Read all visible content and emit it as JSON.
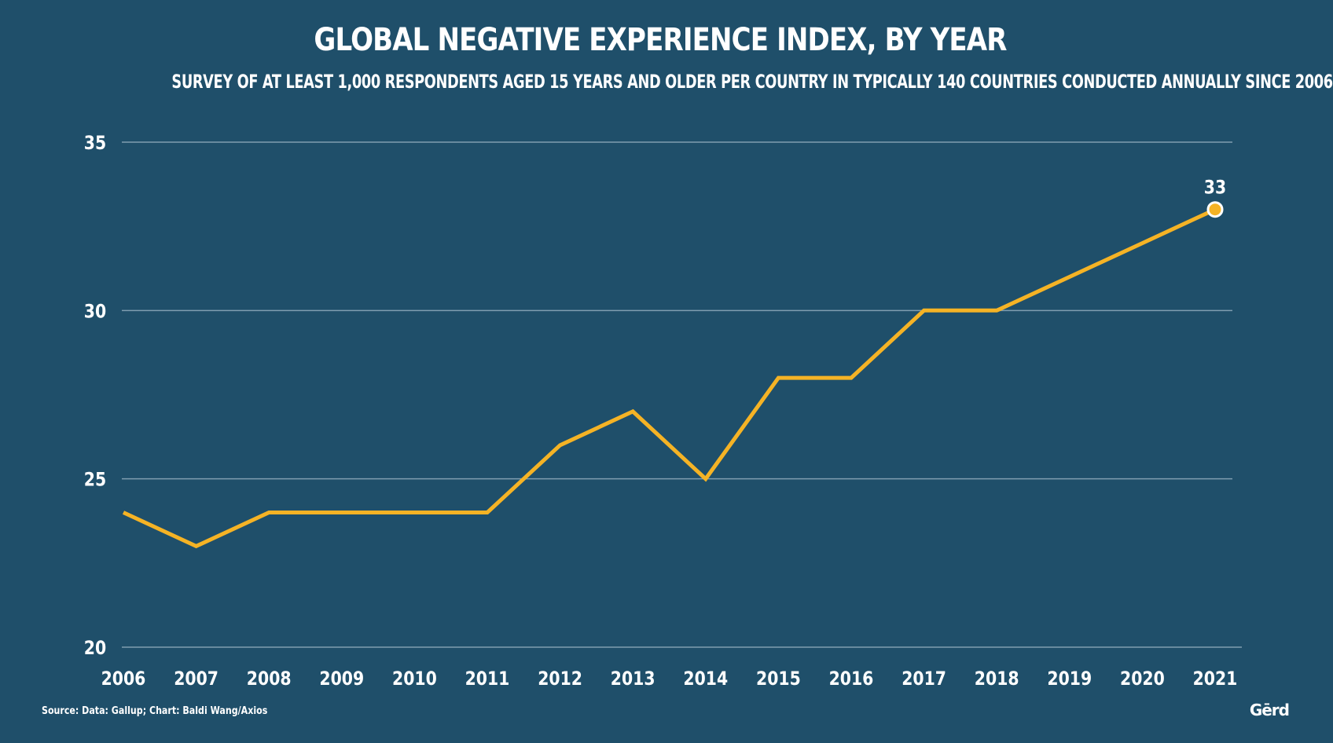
{
  "header": {
    "title": "GLOBAL NEGATIVE EXPERIENCE INDEX, BY YEAR",
    "subtitle": "SURVEY OF AT LEAST 1,000 RESPONDENTS AGED 15 YEARS AND OLDER PER COUNTRY IN TYPICALLY 140 COUNTRIES CONDUCTED ANNUALLY SINCE 2006"
  },
  "footer": {
    "source": "Source: Data: Gallup; Chart: Baldi Wang/Axios",
    "logo": "Gērd"
  },
  "colors": {
    "background": "#1f4f6a",
    "line": "#f5b325",
    "grid": "#9fb8c8",
    "text": "#ffffff"
  },
  "chart_data": {
    "type": "line",
    "title": "GLOBAL NEGATIVE EXPERIENCE INDEX, BY YEAR",
    "xlabel": "",
    "ylabel": "",
    "ylim": [
      20,
      35
    ],
    "yticks": [
      20,
      25,
      30,
      35
    ],
    "grid": true,
    "x": [
      "2006",
      "2007",
      "2008",
      "2009",
      "2010",
      "2011",
      "2012",
      "2013",
      "2014",
      "2015",
      "2016",
      "2017",
      "2018",
      "2019",
      "2020",
      "2021"
    ],
    "series": [
      {
        "values": [
          24,
          23,
          24,
          24,
          24,
          24,
          26,
          27,
          25,
          28,
          28,
          30,
          30,
          31,
          32,
          33
        ]
      }
    ],
    "annotations": [
      {
        "x": "2021",
        "value": 33,
        "label": "33"
      }
    ]
  }
}
